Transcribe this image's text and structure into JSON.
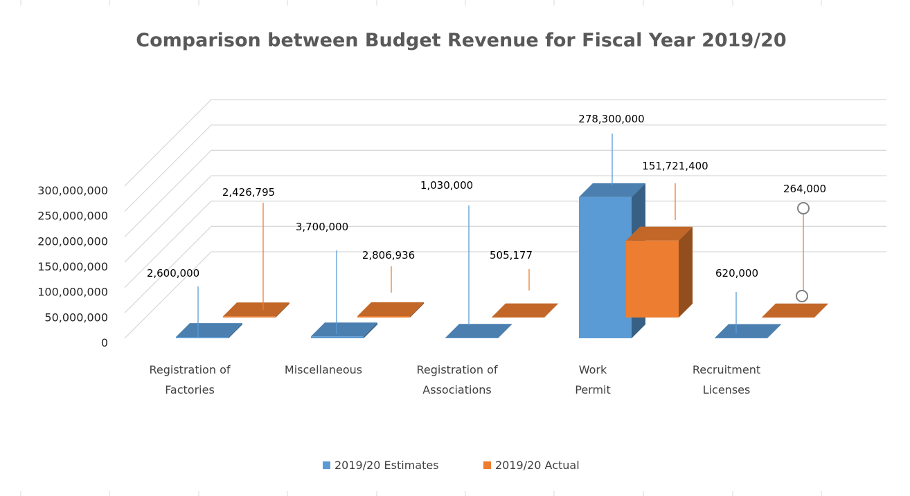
{
  "chart_data": {
    "type": "bar",
    "title": "Comparison between Budget Revenue for Fiscal Year 2019/20",
    "categories": [
      [
        "Registration of",
        "Factories"
      ],
      [
        "Miscellaneous"
      ],
      [
        "Registration of",
        "Associations"
      ],
      [
        "Work",
        "Permit"
      ],
      [
        "Recruitment",
        "Licenses"
      ]
    ],
    "series": [
      {
        "name": "2019/20 Estimates",
        "color": "#5b9bd5",
        "values": [
          2600000,
          3700000,
          1030000,
          278300000,
          620000
        ],
        "labels": [
          "2,600,000",
          "3,700,000",
          "1,030,000",
          "278,300,000",
          "620,000"
        ]
      },
      {
        "name": "2019/20 Actual",
        "color": "#ed7d31",
        "values": [
          2426795,
          2806936,
          505177,
          151721400,
          264000
        ],
        "labels": [
          "2,426,795",
          "2,806,936",
          "505,177",
          "151,721,400",
          "264,000"
        ]
      }
    ],
    "y_ticks": [
      "0",
      "50,000,000",
      "100,000,000",
      "150,000,000",
      "200,000,000",
      "250,000,000",
      "300,000,000"
    ],
    "ylim": [
      0,
      300000000
    ],
    "grid": true,
    "legend_position": "bottom"
  }
}
